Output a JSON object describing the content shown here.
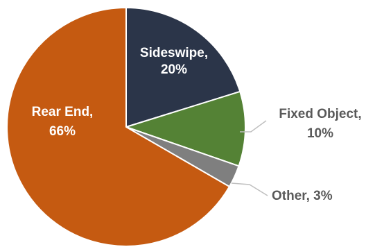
{
  "chart_data": {
    "type": "pie",
    "title": "",
    "slices": [
      {
        "label": "Sideswipe",
        "display": "20%",
        "value": 20,
        "color": "#2b3549",
        "label_color": "#ffffff",
        "label_placement": "inside"
      },
      {
        "label": "Fixed Object",
        "display": "10%",
        "value": 10,
        "color": "#548235",
        "label_color": "#595959",
        "label_placement": "outside"
      },
      {
        "label": "Other",
        "display": "3%",
        "value": 3,
        "color": "#7f7f7f",
        "label_color": "#595959",
        "label_placement": "outside"
      },
      {
        "label": "Rear End",
        "display": "66%",
        "value": 66,
        "color": "#c55a11",
        "label_color": "#ffffff",
        "label_placement": "inside"
      }
    ],
    "start_angle": "12 o'clock",
    "direction": "clockwise",
    "legend": "none",
    "slice_border_color": "#ffffff",
    "leader_line_color": "#bfbfbf"
  }
}
